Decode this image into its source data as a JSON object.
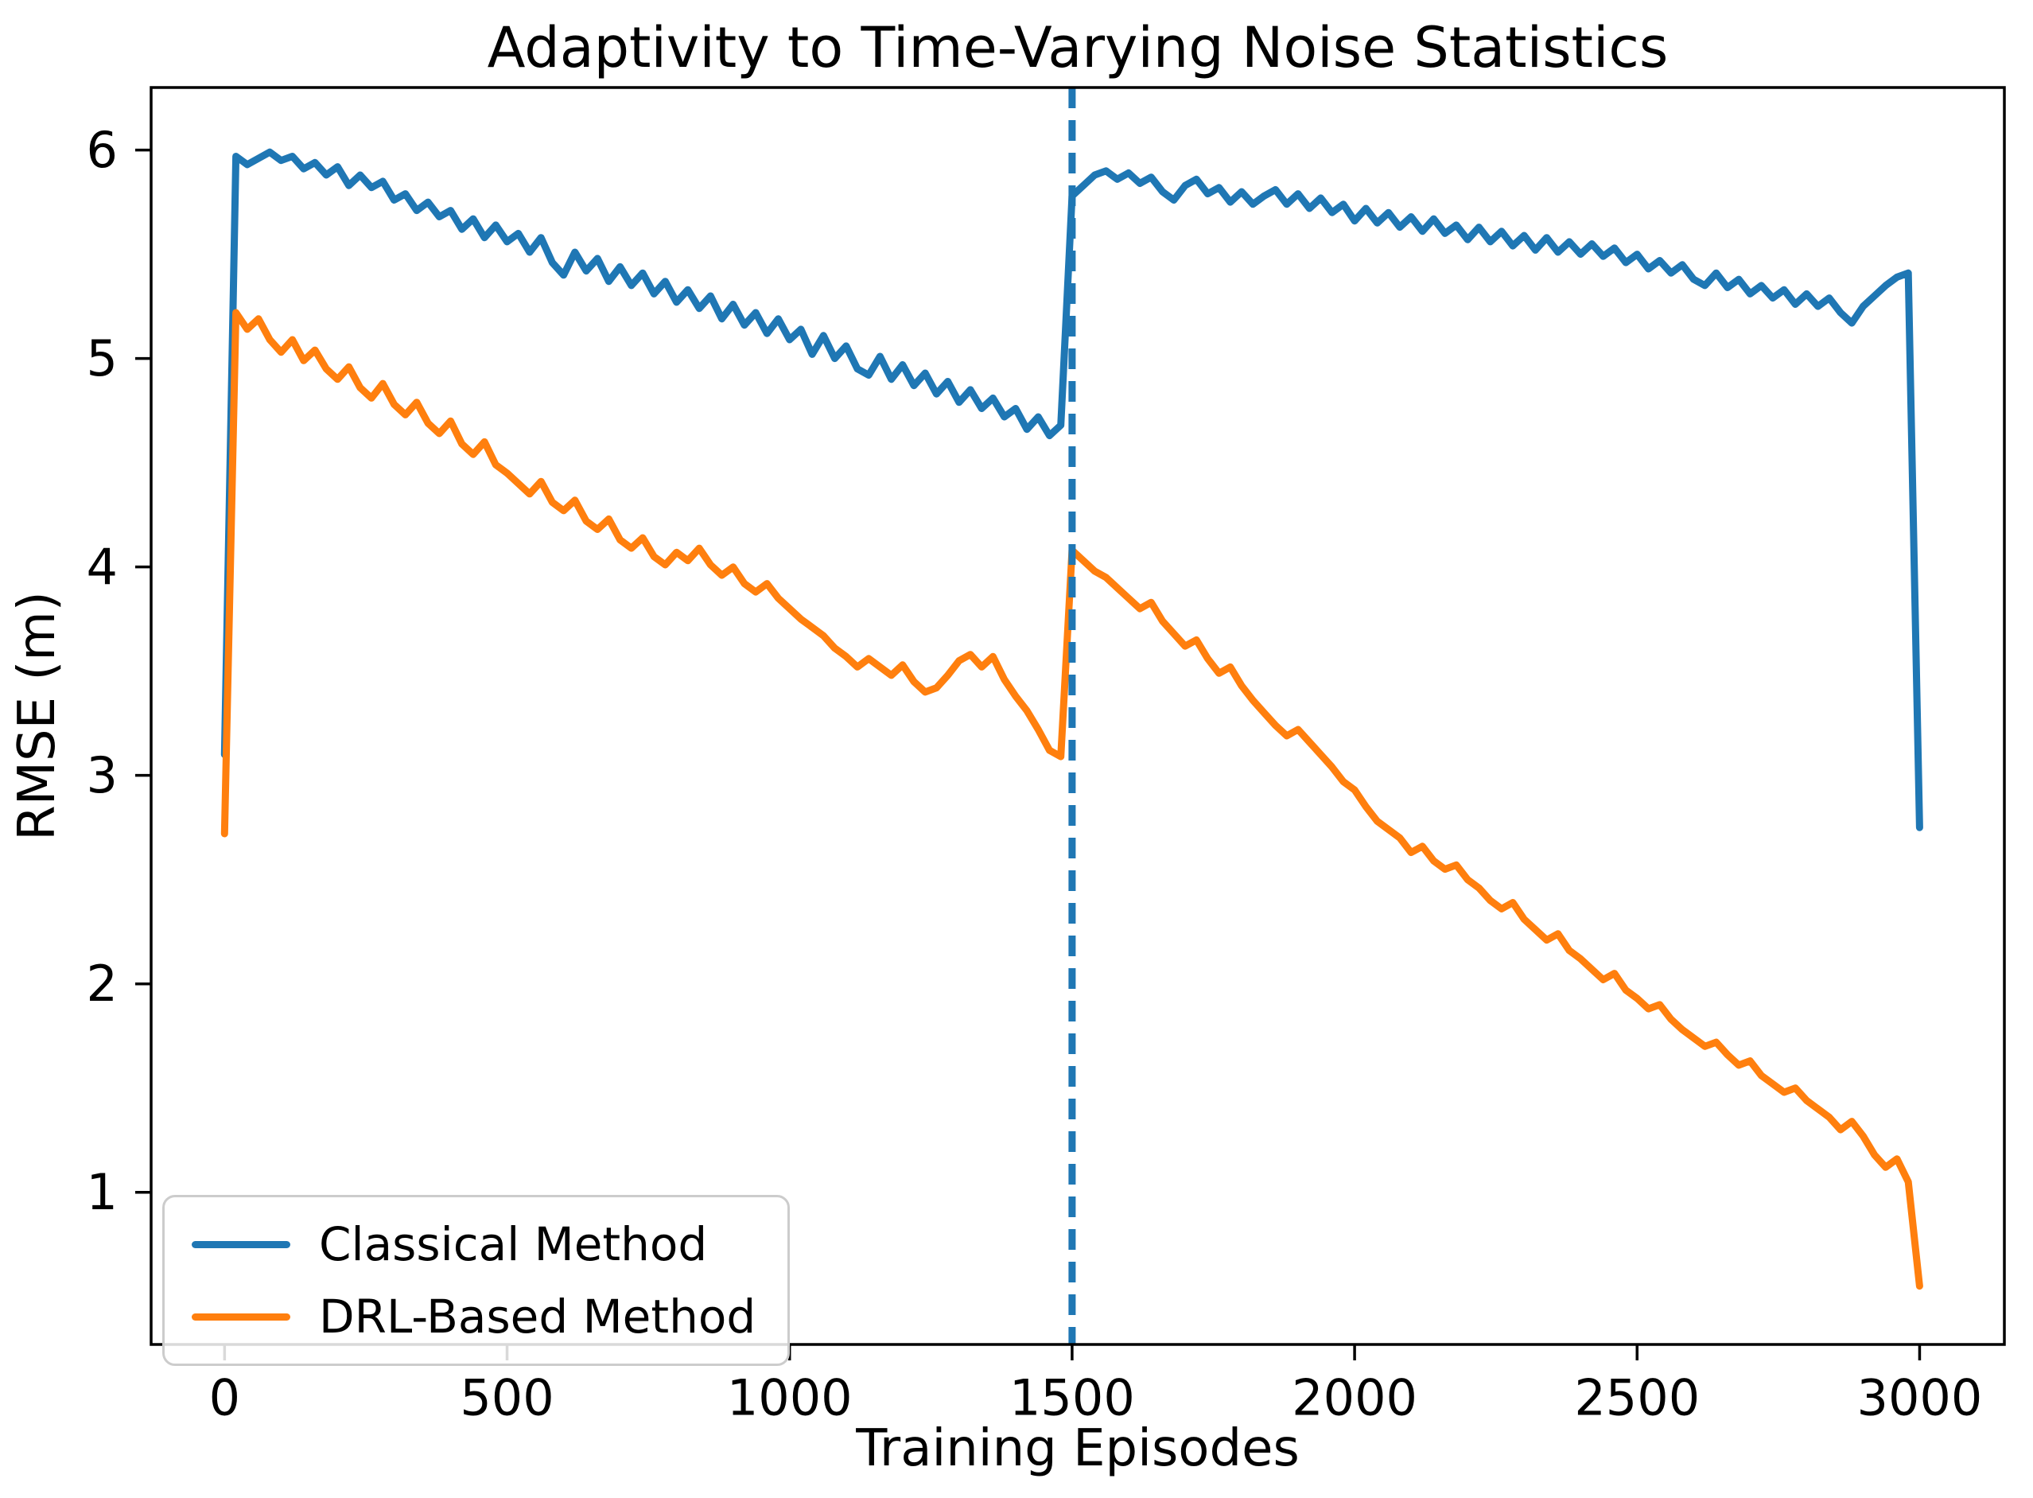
{
  "chart_data": {
    "type": "line",
    "title": "Adaptivity to Time-Varying Noise Statistics",
    "xlabel": "Training Episodes",
    "ylabel": "RMSE (m)",
    "xlim": [
      -130,
      3150
    ],
    "ylim": [
      0.27,
      6.3
    ],
    "x_ticks": [
      0,
      500,
      1000,
      1500,
      2000,
      2500,
      3000
    ],
    "y_ticks": [
      1,
      2,
      3,
      4,
      5,
      6
    ],
    "grid": false,
    "legend_position": "lower-left",
    "axis_color": "#000000",
    "background": "#ffffff",
    "vline": {
      "x": 1500,
      "style": "dashed",
      "color": "#1f77b4"
    },
    "x": [
      0,
      20,
      40,
      60,
      80,
      100,
      120,
      140,
      160,
      180,
      200,
      220,
      240,
      260,
      280,
      300,
      320,
      340,
      360,
      380,
      400,
      420,
      440,
      460,
      480,
      500,
      520,
      540,
      560,
      580,
      600,
      620,
      640,
      660,
      680,
      700,
      720,
      740,
      760,
      780,
      800,
      820,
      840,
      860,
      880,
      900,
      920,
      940,
      960,
      980,
      1000,
      1020,
      1040,
      1060,
      1080,
      1100,
      1120,
      1140,
      1160,
      1180,
      1200,
      1220,
      1240,
      1260,
      1280,
      1300,
      1320,
      1340,
      1360,
      1380,
      1400,
      1420,
      1440,
      1460,
      1480,
      1500,
      1520,
      1540,
      1560,
      1580,
      1600,
      1620,
      1640,
      1660,
      1680,
      1700,
      1720,
      1740,
      1760,
      1780,
      1800,
      1820,
      1840,
      1860,
      1880,
      1900,
      1920,
      1940,
      1960,
      1980,
      2000,
      2020,
      2040,
      2060,
      2080,
      2100,
      2120,
      2140,
      2160,
      2180,
      2200,
      2220,
      2240,
      2260,
      2280,
      2300,
      2320,
      2340,
      2360,
      2380,
      2400,
      2420,
      2440,
      2460,
      2480,
      2500,
      2520,
      2540,
      2560,
      2580,
      2600,
      2620,
      2640,
      2660,
      2680,
      2700,
      2720,
      2740,
      2760,
      2780,
      2800,
      2820,
      2840,
      2860,
      2880,
      2900,
      2920,
      2940,
      2960,
      2980,
      3000
    ],
    "series": [
      {
        "name": "Classical Method",
        "color": "#1f77b4",
        "values": [
          3.1,
          5.97,
          5.93,
          5.96,
          5.99,
          5.95,
          5.97,
          5.91,
          5.94,
          5.88,
          5.92,
          5.83,
          5.88,
          5.82,
          5.85,
          5.76,
          5.79,
          5.71,
          5.75,
          5.68,
          5.71,
          5.62,
          5.67,
          5.58,
          5.64,
          5.56,
          5.6,
          5.51,
          5.58,
          5.46,
          5.4,
          5.51,
          5.42,
          5.48,
          5.37,
          5.44,
          5.35,
          5.41,
          5.31,
          5.37,
          5.27,
          5.33,
          5.24,
          5.3,
          5.19,
          5.26,
          5.16,
          5.22,
          5.12,
          5.19,
          5.09,
          5.14,
          5.02,
          5.11,
          5.0,
          5.06,
          4.95,
          4.92,
          5.01,
          4.9,
          4.97,
          4.87,
          4.93,
          4.83,
          4.89,
          4.79,
          4.85,
          4.76,
          4.81,
          4.72,
          4.76,
          4.66,
          4.72,
          4.63,
          4.68,
          5.78,
          5.83,
          5.88,
          5.9,
          5.86,
          5.89,
          5.84,
          5.87,
          5.8,
          5.76,
          5.83,
          5.86,
          5.79,
          5.82,
          5.75,
          5.8,
          5.74,
          5.78,
          5.81,
          5.74,
          5.79,
          5.72,
          5.77,
          5.7,
          5.74,
          5.66,
          5.72,
          5.65,
          5.7,
          5.63,
          5.68,
          5.61,
          5.67,
          5.6,
          5.64,
          5.57,
          5.63,
          5.56,
          5.61,
          5.54,
          5.59,
          5.52,
          5.58,
          5.51,
          5.56,
          5.5,
          5.55,
          5.49,
          5.53,
          5.46,
          5.5,
          5.43,
          5.47,
          5.41,
          5.45,
          5.38,
          5.35,
          5.41,
          5.34,
          5.38,
          5.31,
          5.35,
          5.29,
          5.33,
          5.26,
          5.31,
          5.25,
          5.29,
          5.22,
          5.17,
          5.25,
          5.3,
          5.35,
          5.39,
          5.41,
          2.75
        ]
      },
      {
        "name": "DRL-Based Method",
        "color": "#ff7f0e",
        "values": [
          2.72,
          5.22,
          5.14,
          5.19,
          5.09,
          5.03,
          5.09,
          4.99,
          5.04,
          4.95,
          4.9,
          4.96,
          4.86,
          4.81,
          4.88,
          4.78,
          4.73,
          4.79,
          4.69,
          4.64,
          4.7,
          4.59,
          4.54,
          4.6,
          4.49,
          4.45,
          4.4,
          4.35,
          4.41,
          4.31,
          4.27,
          4.32,
          4.22,
          4.18,
          4.23,
          4.13,
          4.09,
          4.14,
          4.05,
          4.01,
          4.07,
          4.03,
          4.09,
          4.01,
          3.96,
          4.0,
          3.92,
          3.88,
          3.92,
          3.85,
          3.8,
          3.75,
          3.71,
          3.67,
          3.61,
          3.57,
          3.52,
          3.56,
          3.52,
          3.48,
          3.53,
          3.45,
          3.4,
          3.42,
          3.48,
          3.55,
          3.58,
          3.52,
          3.57,
          3.46,
          3.38,
          3.31,
          3.22,
          3.12,
          3.09,
          4.08,
          4.03,
          3.98,
          3.95,
          3.9,
          3.85,
          3.8,
          3.83,
          3.74,
          3.68,
          3.62,
          3.65,
          3.56,
          3.49,
          3.52,
          3.43,
          3.36,
          3.3,
          3.24,
          3.19,
          3.22,
          3.16,
          3.1,
          3.04,
          2.97,
          2.93,
          2.85,
          2.78,
          2.74,
          2.7,
          2.63,
          2.66,
          2.59,
          2.55,
          2.57,
          2.5,
          2.46,
          2.4,
          2.36,
          2.39,
          2.31,
          2.26,
          2.21,
          2.24,
          2.16,
          2.12,
          2.07,
          2.02,
          2.05,
          1.97,
          1.93,
          1.88,
          1.9,
          1.83,
          1.78,
          1.74,
          1.7,
          1.72,
          1.66,
          1.61,
          1.63,
          1.56,
          1.52,
          1.48,
          1.5,
          1.44,
          1.4,
          1.36,
          1.3,
          1.34,
          1.27,
          1.18,
          1.12,
          1.16,
          1.05,
          0.55
        ]
      }
    ]
  }
}
